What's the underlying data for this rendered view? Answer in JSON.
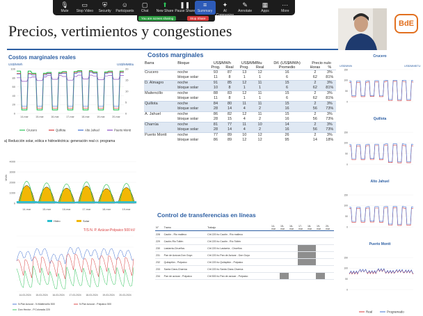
{
  "toolbar": {
    "buttons": [
      {
        "label": "Mute",
        "icon": "microphone-icon"
      },
      {
        "label": "Stop Video",
        "icon": "camera-icon"
      },
      {
        "label": "Security",
        "icon": "shield-icon"
      },
      {
        "label": "Participants",
        "icon": "participants-icon"
      },
      {
        "label": "Chat",
        "icon": "chat-icon"
      },
      {
        "label": "New Share",
        "icon": "share-icon"
      },
      {
        "label": "Pause Share",
        "icon": "pause-icon"
      },
      {
        "label": "Summary",
        "icon": "summary-icon"
      },
      {
        "label": "AI Companion",
        "icon": "sparkle-icon"
      },
      {
        "label": "Annotate",
        "icon": "pen-icon"
      },
      {
        "label": "Apps",
        "icon": "apps-icon"
      },
      {
        "label": "More",
        "icon": "more-icon"
      }
    ],
    "sharing_label": "You are screen sharing",
    "stop_share_label": "Stop Share"
  },
  "slide": {
    "title": "Precios, vertimientos y congestiones",
    "logo": "BdE",
    "left": {
      "cmg_title": "Costos marginales reales",
      "cmg_unit_left": "US$/MWh",
      "cmg_unit_right": "US$/MMBtu",
      "cmg_legend": [
        "Crucero",
        "Quillota",
        "Alto Jahuel",
        "Puerto Montt"
      ],
      "reduction_title": "a) Reducción solar, eólica e hidroeléctrica: generación real cr. programa",
      "reduction_legend": [
        "Hidro",
        "Solar"
      ],
      "reduction_ylabel": "MWh",
      "line_title": "T/S N. P. Azúcar-Polpaico 500 kV",
      "line_legend": [
        "N.Pan Azucar - N.Maitencillo 500",
        "N.Pan Azucar - Polpaico 500",
        "Don Hector - P.Colorada 220"
      ]
    },
    "table": {
      "title": "Costos marginales",
      "headers": {
        "barra": "Barra",
        "bloque": "Bloque",
        "mwh": "US$/MWh",
        "mmbtu": "US$/MMBtu",
        "dif": "Dif. (US$/MWh)",
        "nulo": "Precio nulo"
      },
      "subheaders": {
        "prog": "Prog.",
        "real": "Real",
        "promedio": "Promedio",
        "horas": "Horas",
        "pct": "%"
      },
      "sup": "1",
      "rows": [
        {
          "barra": "Crucero",
          "bloques": [
            {
              "b": "noche",
              "p": "93",
              "r": "87",
              "p2": "13",
              "r2": "12",
              "d": "16",
              "h": "2",
              "pc": "3%"
            },
            {
              "b": "bloque solar",
              "p": "11",
              "r": "8",
              "p2": "1",
              "r2": "1",
              "d": "6",
              "h": "62",
              "pc": "81%"
            }
          ]
        },
        {
          "barra": "D. Almagro",
          "bloques": [
            {
              "b": "noche",
              "p": "91",
              "r": "85",
              "p2": "12",
              "r2": "11",
              "d": "15",
              "h": "2",
              "pc": "3%"
            },
            {
              "b": "bloque solar",
              "p": "10",
              "r": "8",
              "p2": "1",
              "r2": "1",
              "d": "6",
              "h": "62",
              "pc": "81%"
            }
          ]
        },
        {
          "barra": "Maitencillo",
          "bloques": [
            {
              "b": "noche",
              "p": "88",
              "r": "83",
              "p2": "12",
              "r2": "11",
              "d": "15",
              "h": "2",
              "pc": "3%"
            },
            {
              "b": "bloque solar",
              "p": "11",
              "r": "8",
              "p2": "1",
              "r2": "1",
              "d": "6",
              "h": "62",
              "pc": "81%"
            }
          ]
        },
        {
          "barra": "Quillota",
          "bloques": [
            {
              "b": "noche",
              "p": "84",
              "r": "80",
              "p2": "11",
              "r2": "11",
              "d": "15",
              "h": "2",
              "pc": "3%"
            },
            {
              "b": "bloque solar",
              "p": "28",
              "r": "14",
              "p2": "4",
              "r2": "2",
              "d": "16",
              "h": "56",
              "pc": "73%"
            }
          ]
        },
        {
          "barra": "A. Jahuel",
          "bloques": [
            {
              "b": "noche",
              "p": "86",
              "r": "82",
              "p2": "12",
              "r2": "11",
              "d": "15",
              "h": "2",
              "pc": "3%"
            },
            {
              "b": "bloque solar",
              "p": "28",
              "r": "15",
              "p2": "4",
              "r2": "2",
              "d": "16",
              "h": "56",
              "pc": "73%"
            }
          ]
        },
        {
          "barra": "Charrúa",
          "bloques": [
            {
              "b": "noche",
              "p": "81",
              "r": "77",
              "p2": "11",
              "r2": "10",
              "d": "14",
              "h": "2",
              "pc": "3%"
            },
            {
              "b": "bloque solar",
              "p": "28",
              "r": "14",
              "p2": "4",
              "r2": "2",
              "d": "16",
              "h": "56",
              "pc": "73%"
            }
          ]
        },
        {
          "barra": "Puerto Montt",
          "bloques": [
            {
              "b": "noche",
              "p": "77",
              "r": "89",
              "p2": "10",
              "r2": "12",
              "d": "26",
              "h": "2",
              "pc": "3%"
            },
            {
              "b": "bloque solar",
              "p": "86",
              "r": "89",
              "p2": "12",
              "r2": "12",
              "d": "95",
              "h": "14",
              "pc": "18%"
            }
          ]
        }
      ]
    },
    "transfer": {
      "title": "Control de transferencias en líneas",
      "headers": [
        "N°",
        "Tramo",
        "Trabajo",
        "14-mar",
        "15-mar",
        "16-mar",
        "17-mar",
        "18-mar",
        "19-mar",
        "20-mar"
      ],
      "rows": [
        [
          "228",
          "Cautín - Rio malleco",
          "Ctrl 220 kv Cautín - Río malleco"
        ],
        [
          "229",
          "Cautín-Rio Toltén",
          "Ctrl 220 kv Cautín - Río Toltén"
        ],
        [
          "230",
          "Lastarria-Cirueños",
          "Ctrl 220 kv Lastarria - Cirueños"
        ],
        [
          "231",
          "Pan de Azúcar-Don Goyo",
          "Ctrl 220 kv Pan de Azúcar - Don Goyo"
        ],
        [
          "232",
          "Quilapilún - Polpaico",
          "Ctrl 220 kv Quilapilún - Polpaico"
        ],
        [
          "233",
          "Santa Clara-Charrúa",
          "Ctrl 220 kv Santa Clara-Charrúa"
        ],
        [
          "234",
          "Pan de azúcar - Polpaico",
          "Ctrl 500 kv Pan de azúcar - Polpaico"
        ]
      ]
    },
    "right": {
      "unit_left": "US$/MWh",
      "unit_right": "US$/MMBTU",
      "charts": [
        "Crucero",
        "Quillota",
        "Alto Jahuel",
        "Puerto Montt"
      ],
      "legend": [
        "Real",
        "Programado"
      ]
    }
  },
  "colors": {
    "accent": "#2d5fa3",
    "green": "#2ec45a",
    "orange": "#e2701f",
    "red": "#d83a3a"
  },
  "chart_data": [
    {
      "type": "line",
      "title": "Costos marginales reales",
      "ylabel": "US$/MWh",
      "ylabel_right": "US$/MMBtu",
      "ylim": [
        0,
        100
      ],
      "ylim_right": [
        0,
        20
      ],
      "yticks": [
        0,
        20,
        40,
        60,
        80,
        100
      ],
      "yticks_right": [
        0,
        5,
        10,
        15,
        20
      ],
      "categories": [
        "14-mar",
        "15-mar",
        "16-mar",
        "17-mar",
        "18-mar",
        "19-mar",
        "20-mar"
      ],
      "series": [
        {
          "name": "Crucero",
          "values": [
            95,
            90,
            92,
            94,
            96,
            93,
            95
          ]
        },
        {
          "name": "Quillota",
          "values": [
            90,
            88,
            90,
            92,
            94,
            91,
            93
          ]
        },
        {
          "name": "Alto Jahuel",
          "values": [
            88,
            86,
            89,
            90,
            92,
            90,
            91
          ]
        },
        {
          "name": "Puerto Montt",
          "values": [
            80,
            82,
            85,
            83,
            86,
            84,
            85
          ]
        }
      ]
    },
    {
      "type": "area",
      "title": "a) Reducción solar, eólica e hidroeléctrica: generación real cr. programa",
      "ylabel": "MWh",
      "ylim": [
        0,
        4000
      ],
      "yticks": [
        0,
        1000,
        2000,
        3000,
        4000
      ],
      "categories": [
        "14-mar",
        "15-mar",
        "16-mar",
        "17-mar",
        "18-mar",
        "19-mar"
      ],
      "series": [
        {
          "name": "Solar",
          "values": [
            2600,
            2300,
            2100,
            2500,
            2000,
            2200
          ]
        },
        {
          "name": "Hidro",
          "values": [
            200,
            180,
            150,
            170,
            160,
            190
          ]
        }
      ]
    },
    {
      "type": "line",
      "title": "T/S N. P. Azúcar-Polpaico 500 kV",
      "ylim": [
        0,
        1
      ],
      "categories": [
        "14-03-2024",
        "15-03-2024",
        "16-03-2024",
        "17-03-2024",
        "18-03-2024",
        "19-03-2024",
        "20-03-2024"
      ],
      "series": [
        {
          "name": "N.Pan Azucar - N.Maitencillo 500",
          "values": [
            0.55,
            0.6,
            0.5,
            0.62,
            0.58,
            0.6,
            0.57
          ]
        },
        {
          "name": "N.Pan Azucar - Polpaico 500",
          "values": [
            0.4,
            0.45,
            0.38,
            0.5,
            0.42,
            0.47,
            0.44
          ]
        },
        {
          "name": "Don Hector - P.Colorada 220",
          "values": [
            0.25,
            0.3,
            0.2,
            0.28,
            0.26,
            0.3,
            0.27
          ]
        }
      ]
    },
    {
      "type": "line",
      "title": "Crucero",
      "ylim": [
        0,
        150
      ],
      "yticks": [
        0,
        50,
        100,
        150
      ],
      "series": [
        {
          "name": "Real",
          "values": [
            90,
            20,
            92,
            15,
            95,
            18,
            93
          ]
        },
        {
          "name": "Programado",
          "values": [
            93,
            25,
            94,
            22,
            96,
            24,
            95
          ]
        }
      ]
    },
    {
      "type": "line",
      "title": "Quillota",
      "ylim": [
        0,
        150
      ],
      "yticks": [
        0,
        50,
        100,
        150
      ],
      "series": [
        {
          "name": "Real",
          "values": [
            85,
            30,
            88,
            25,
            90,
            28,
            86
          ]
        },
        {
          "name": "Programado",
          "values": [
            88,
            35,
            90,
            32,
            92,
            34,
            90
          ]
        }
      ]
    },
    {
      "type": "line",
      "title": "Alto Jahuel",
      "ylim": [
        0,
        150
      ],
      "yticks": [
        0,
        50,
        100,
        150
      ],
      "series": [
        {
          "name": "Real",
          "values": [
            86,
            32,
            88,
            28,
            90,
            30,
            87
          ]
        },
        {
          "name": "Programado",
          "values": [
            88,
            38,
            91,
            34,
            92,
            36,
            90
          ]
        }
      ]
    },
    {
      "type": "line",
      "title": "Puerto Montt",
      "ylim": [
        0,
        150
      ],
      "yticks": [
        0,
        50,
        100,
        150
      ],
      "series": [
        {
          "name": "Real",
          "values": [
            78,
            88,
            80,
            90,
            82,
            86,
            84
          ]
        },
        {
          "name": "Programado",
          "values": [
            77,
            85,
            79,
            88,
            80,
            84,
            82
          ]
        }
      ]
    }
  ]
}
